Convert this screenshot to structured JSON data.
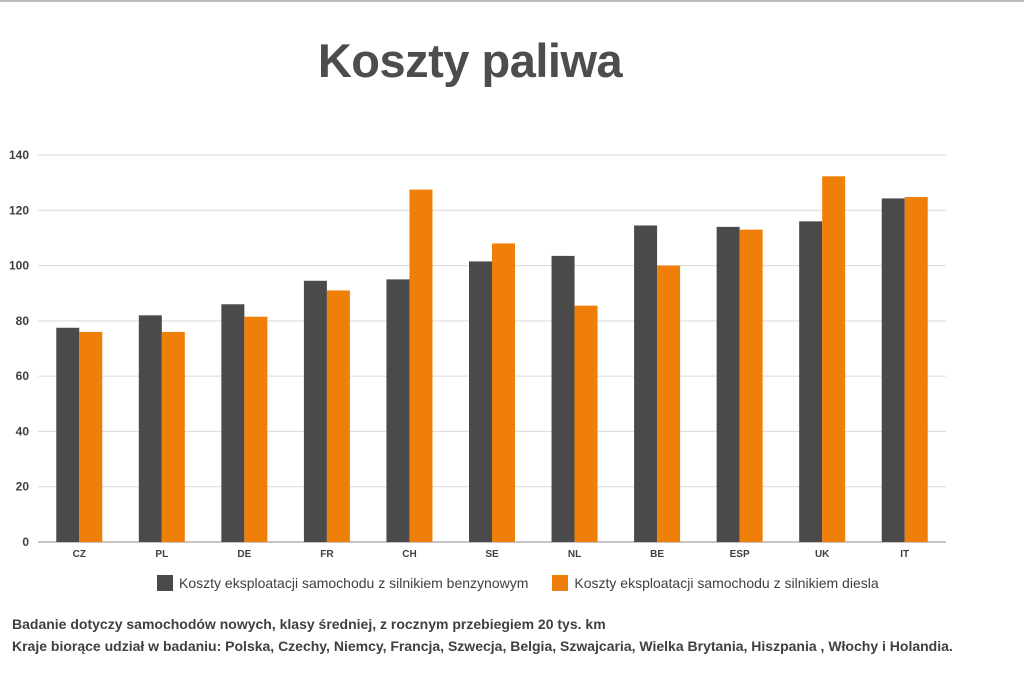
{
  "title": "Koszty paliwa",
  "chart_data": {
    "type": "bar",
    "categories": [
      "CZ",
      "PL",
      "DE",
      "FR",
      "CH",
      "SE",
      "NL",
      "BE",
      "ESP",
      "UK",
      "IT"
    ],
    "series": [
      {
        "name": "Koszty eksploatacji samochodu z silnikiem benzynowym",
        "color": "#4a4a4a",
        "values": [
          77.5,
          82,
          86,
          94.5,
          95,
          101.5,
          103.5,
          114.5,
          114,
          116,
          124.3
        ]
      },
      {
        "name": "Koszty eksploatacji samochodu z silnikiem diesla",
        "color": "#f07f09",
        "values": [
          76,
          76,
          81.5,
          91,
          127.5,
          108,
          85.5,
          100,
          113,
          132.3,
          124.8
        ]
      }
    ],
    "ylim": [
      0,
      140
    ],
    "yticks": [
      0,
      20,
      40,
      60,
      80,
      100,
      120,
      140
    ],
    "grid": true,
    "legend_position": "bottom"
  },
  "notes": {
    "line1": "Badanie dotyczy samochodów nowych, klasy średniej, z rocznym przebiegiem 20 tys. km",
    "line2": "Kraje biorące udział w badaniu: Polska, Czechy, Niemcy, Francja, Szwecja, Belgia, Szwajcaria, Wielka Brytania, Hiszpania , Włochy i Holandia."
  }
}
